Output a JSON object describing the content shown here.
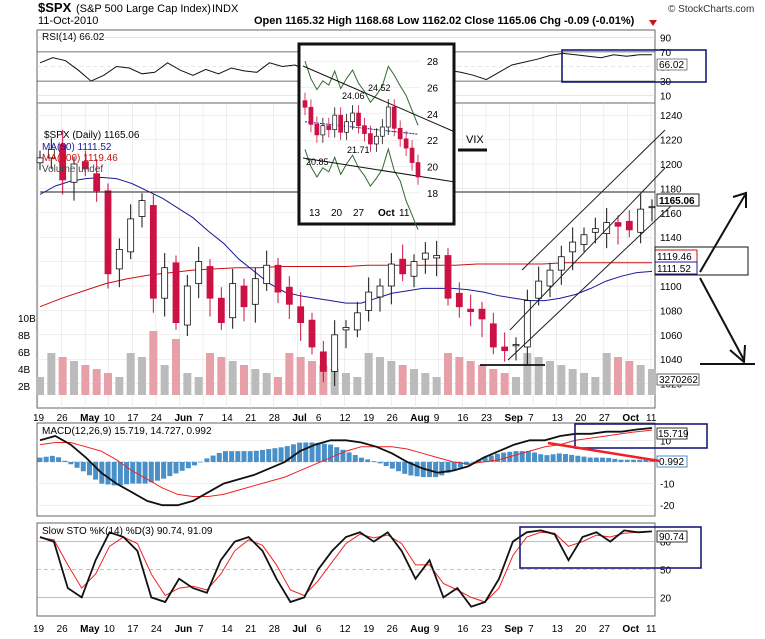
{
  "header": {
    "symbol": "$SPX",
    "name": "(S&P 500 Large Cap Index)",
    "exchange": "INDX",
    "date": "11-Oct-2010",
    "copyright": "© StockCharts.com",
    "quote": "Open 1165.32  High 1168.68  Low 1162.02  Close 1165.06  Chg -0.09 (-0.01%)",
    "chg_arrow_icon": "down-triangle-icon"
  },
  "colors": {
    "price_up": "#111111",
    "price_down": "#cc1144",
    "ma50": "#1a1a99",
    "ma200": "#cc1111",
    "volume_up": "#bbbbbb",
    "volume_down": "#e8a0a8",
    "macd_hist": "#4a90c8",
    "signal": "#ee2222",
    "annotation_box": "#1a1a7a",
    "grid": "#dddddd"
  },
  "chart_data": [
    {
      "type": "line",
      "title": "RSI(14) 66.02",
      "series": [
        {
          "name": "RSI(14)",
          "last": 66.02,
          "values": [
            55,
            62,
            58,
            45,
            30,
            38,
            50,
            48,
            40,
            42,
            55,
            45,
            38,
            46,
            40,
            48,
            44,
            42,
            55,
            50,
            52,
            44,
            48,
            58,
            62,
            58,
            54,
            60,
            60,
            52,
            48,
            40,
            45,
            42,
            38,
            32,
            42,
            52,
            56,
            60,
            65,
            68,
            66,
            64,
            62,
            66,
            64,
            66,
            66
          ]
        }
      ],
      "ylim": [
        0,
        100
      ],
      "ticks": [
        "90",
        "70",
        "50",
        "30",
        "10"
      ],
      "current_label": "66.02"
    },
    {
      "type": "candlestick",
      "title": "$SPX (Daily) 1165.06",
      "legend": [
        "$SPX (Daily) 1165.06",
        "MA(50) 1111.52",
        "MA(200) 1119.46",
        "Volume undef"
      ],
      "x_labels": [
        "19",
        "26",
        "May",
        "10",
        "17",
        "24",
        "Jun",
        "7",
        "14",
        "21",
        "28",
        "Jul",
        "6",
        "12",
        "19",
        "26",
        "Aug",
        "9",
        "16",
        "23",
        "Sep",
        "7",
        "13",
        "20",
        "27",
        "Oct",
        "11"
      ],
      "close": [
        1205,
        1212,
        1187,
        1200,
        1196,
        1178,
        1110,
        1130,
        1155,
        1170,
        1090,
        1115,
        1070,
        1100,
        1120,
        1090,
        1070,
        1102,
        1083,
        1106,
        1117,
        1095,
        1085,
        1070,
        1050,
        1030,
        1060,
        1066,
        1078,
        1095,
        1100,
        1118,
        1110,
        1120,
        1127,
        1125,
        1090,
        1083,
        1079,
        1073,
        1050,
        1047,
        1052,
        1088,
        1104,
        1113,
        1124,
        1136,
        1142,
        1147,
        1152,
        1149,
        1146,
        1163,
        1165
      ],
      "ma50": [
        1175,
        1182,
        1186,
        1188,
        1189,
        1188,
        1184,
        1178,
        1172,
        1164,
        1156,
        1145,
        1135,
        1122,
        1112,
        1102,
        1095,
        1092,
        1090,
        1088,
        1086,
        1086,
        1090,
        1094,
        1096,
        1098,
        1098,
        1098,
        1097,
        1095,
        1092,
        1090,
        1088,
        1088,
        1090,
        1093,
        1098,
        1104,
        1108,
        1111,
        1112
      ],
      "ma200": [
        1083,
        1090,
        1096,
        1102,
        1106,
        1109,
        1111,
        1113,
        1114,
        1115,
        1115,
        1116,
        1116,
        1116,
        1116,
        1117,
        1117,
        1117,
        1117,
        1117,
        1118,
        1118,
        1118,
        1118,
        1119,
        1119,
        1119,
        1119,
        1119
      ],
      "ylim": [
        1020,
        1240
      ],
      "y_ticks": [
        "1240",
        "1220",
        "1200",
        "1180",
        "1160",
        "1140",
        "1120",
        "1100",
        "1080",
        "1060",
        "1040",
        "1020"
      ],
      "volume_ticks": [
        "10B",
        "8B",
        "6B",
        "4B",
        "2B"
      ],
      "current_labels": {
        "price": "1165.06",
        "ma200": "1119.46",
        "ma50": "1111.52",
        "volume": "3270262"
      }
    },
    {
      "type": "line",
      "title": "MACD(12,26,9) 15.719, 14.727, 0.992",
      "series": [
        {
          "name": "MACD(12,26,9)",
          "last": 15.719,
          "values": [
            10,
            12,
            8,
            2,
            -5,
            -10,
            -14,
            -18,
            -20,
            -20,
            -18,
            -14,
            -10,
            -8,
            -6,
            -3,
            0,
            5,
            8,
            10,
            10,
            9,
            7,
            4,
            0,
            -3,
            -5,
            -4,
            -2,
            2,
            5,
            8,
            10,
            10,
            12,
            13,
            13,
            14,
            14,
            15,
            15.7
          ]
        },
        {
          "name": "signal",
          "last": 14.727,
          "values": [
            8,
            9,
            9,
            7,
            5,
            1,
            -4,
            -8,
            -12,
            -15,
            -16,
            -16,
            -15,
            -13,
            -11,
            -9,
            -7,
            -4,
            -1,
            2,
            5,
            7,
            7,
            7,
            6,
            4,
            2,
            0,
            -1,
            0,
            1,
            3,
            5,
            7,
            8,
            10,
            11,
            12,
            13,
            14,
            14.7
          ]
        }
      ],
      "histogram_last": 0.992,
      "ylim": [
        -25,
        18
      ],
      "ticks": [
        "10",
        "0",
        "-10",
        "-20"
      ],
      "current_labels": [
        "15.719",
        "0.992"
      ]
    },
    {
      "type": "line",
      "title": "Slow STO %K(14) %D(3) 90.74, 91.09",
      "series": [
        {
          "name": "%K(14)",
          "last": 90.74,
          "values": [
            85,
            80,
            30,
            20,
            60,
            90,
            85,
            70,
            20,
            15,
            40,
            30,
            25,
            60,
            80,
            85,
            70,
            40,
            15,
            20,
            50,
            70,
            85,
            90,
            80,
            90,
            70,
            40,
            60,
            20,
            30,
            10,
            15,
            40,
            80,
            90,
            92,
            88,
            60,
            85,
            90,
            80,
            92,
            90,
            91
          ]
        },
        {
          "name": "%D(3)",
          "last": 91.09,
          "values": [
            84,
            82,
            55,
            30,
            45,
            75,
            85,
            78,
            45,
            22,
            30,
            32,
            28,
            45,
            70,
            82,
            76,
            55,
            28,
            22,
            38,
            58,
            78,
            88,
            84,
            87,
            78,
            55,
            55,
            35,
            28,
            20,
            15,
            30,
            65,
            85,
            90,
            89,
            75,
            80,
            87,
            85,
            89,
            90,
            91
          ]
        }
      ],
      "ylim": [
        0,
        100
      ],
      "ticks": [
        "80",
        "50",
        "20"
      ],
      "current_label": "90.74",
      "x_labels": [
        "19",
        "26",
        "May",
        "10",
        "17",
        "24",
        "Jun",
        "7",
        "14",
        "21",
        "28",
        "Jul",
        "6",
        "12",
        "19",
        "26",
        "Aug",
        "9",
        "16",
        "23",
        "Sep",
        "7",
        "13",
        "20",
        "27",
        "Oct",
        "11"
      ]
    },
    {
      "type": "line",
      "title": "VIX",
      "inset_label": "VIX",
      "series": [
        {
          "name": "VIX",
          "values": [
            24.5,
            23.2,
            22.4,
            23.1,
            22.8,
            23.9,
            22.6,
            23.4,
            24.06,
            23.1,
            22.5,
            21.71,
            22.3,
            23.0,
            24.52,
            22.9,
            22.1,
            21.4,
            20.3,
            19.2
          ]
        }
      ],
      "y_ticks": [
        "28",
        "26",
        "24",
        "22",
        "20",
        "18"
      ],
      "x_labels": [
        "13",
        "20",
        "27",
        "Oct",
        "11"
      ],
      "annotations": [
        "24.52",
        "24.06",
        "21.71",
        "20.85"
      ],
      "ylim": [
        17,
        29
      ]
    }
  ]
}
